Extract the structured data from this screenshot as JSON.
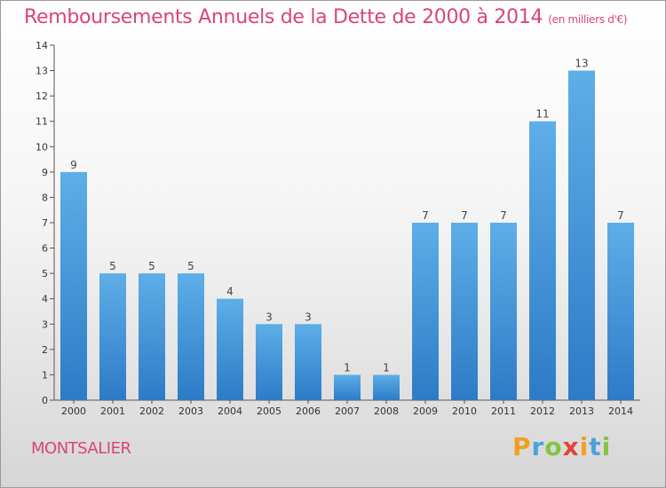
{
  "title": "Remboursements Annuels de la Dette de 2000 à 2014",
  "unit": "(en milliers d'€)",
  "commune": "MONTSALIER",
  "logo": {
    "letters": [
      "P",
      "r",
      "o",
      "x",
      "i",
      "t",
      "i"
    ],
    "colors": [
      "#f0a020",
      "#4aa3df",
      "#86c440",
      "#e0463a",
      "#f0a020",
      "#4aa3df",
      "#86c440"
    ]
  },
  "colors": {
    "bar": "#3d8fd6",
    "bar_light": "#5eaee8",
    "title": "#d9457c"
  },
  "chart_data": {
    "type": "bar",
    "categories": [
      "2000",
      "2001",
      "2002",
      "2003",
      "2004",
      "2005",
      "2006",
      "2007",
      "2008",
      "2009",
      "2010",
      "2011",
      "2012",
      "2013",
      "2014"
    ],
    "values": [
      9,
      5,
      5,
      5,
      4,
      3,
      3,
      1,
      1,
      7,
      7,
      7,
      11,
      13,
      7
    ],
    "ylim": [
      0,
      14
    ],
    "yticks": [
      0,
      1,
      2,
      3,
      4,
      5,
      6,
      7,
      8,
      9,
      10,
      11,
      12,
      13,
      14
    ],
    "grid": false
  }
}
